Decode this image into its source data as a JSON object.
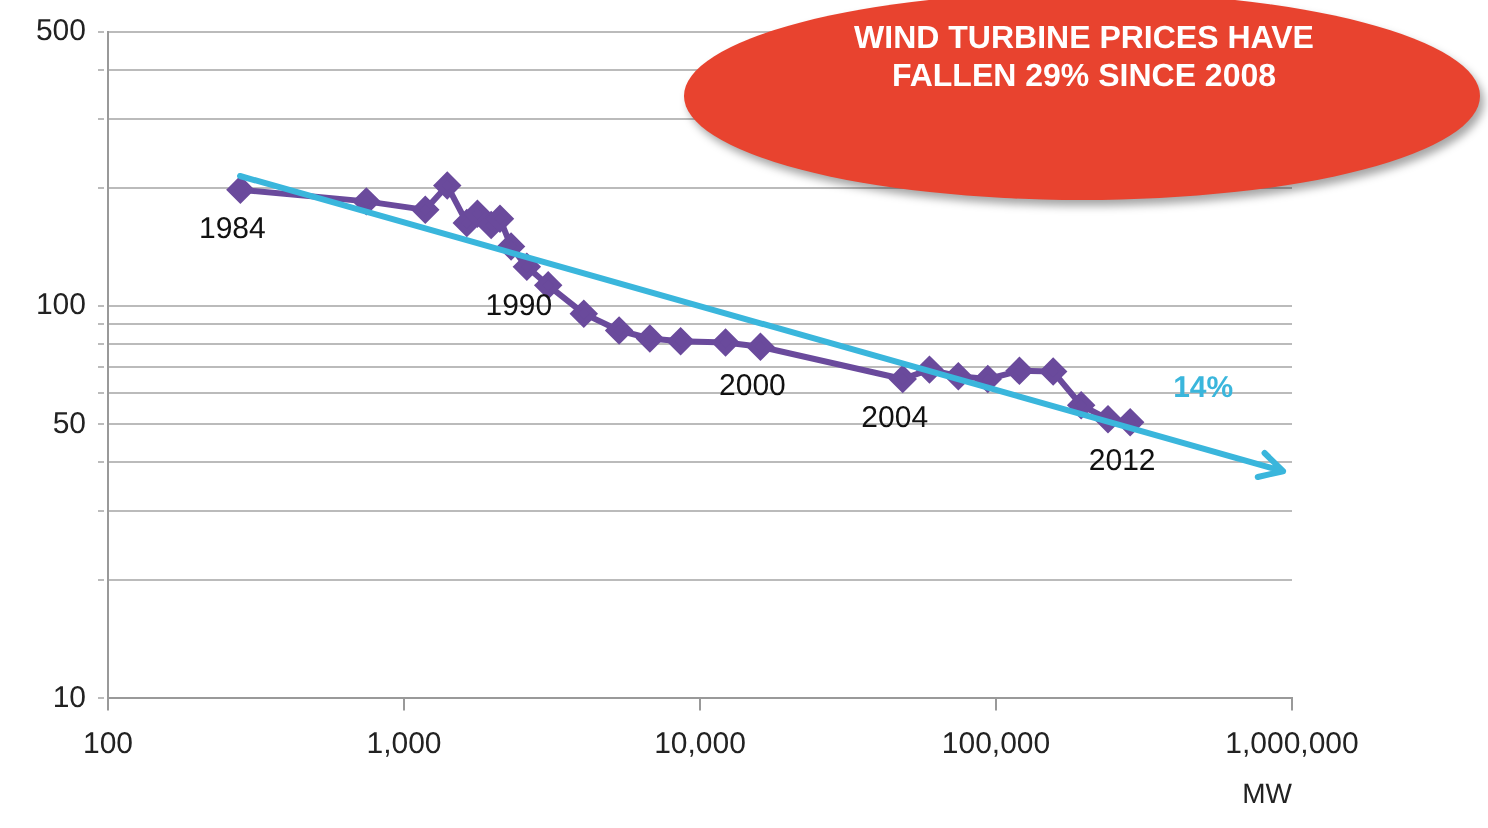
{
  "chart_data": {
    "type": "line",
    "title": "WIND TURBINE PRICES HAVE FALLEN 29% SINCE 2008",
    "xlabel": "MW",
    "log": "xy",
    "xlim": [
      100,
      1000000
    ],
    "xticks": [
      {
        "value": 100,
        "label": "100"
      },
      {
        "value": 1000,
        "label": "1,000"
      },
      {
        "value": 10000,
        "label": "10,000"
      },
      {
        "value": 100000,
        "label": "100,000"
      },
      {
        "value": 1000000,
        "label": "1,000,000"
      }
    ],
    "ylim": [
      10,
      500
    ],
    "yticks": [
      10,
      {
        "value": 20,
        "label": null
      },
      {
        "value": 30,
        "label": null
      },
      {
        "value": 40,
        "label": null
      },
      50,
      {
        "value": 60,
        "label": null
      },
      {
        "value": 70,
        "label": null
      },
      {
        "value": 80,
        "label": null
      },
      {
        "value": 90,
        "label": null
      },
      100,
      {
        "value": 200,
        "label": null
      },
      {
        "value": 300,
        "label": null
      },
      {
        "value": 400,
        "label": null
      },
      500
    ],
    "grid": "y",
    "legend": false,
    "series": [
      {
        "color": "#6a4a9c",
        "marker": "diamond",
        "x": [
          280,
          746,
          1180,
          1400,
          1630,
          1770,
          1970,
          2110,
          2300,
          2600,
          3070,
          4050,
          5330,
          6770,
          8600,
          12200,
          16000,
          48400,
          59600,
          74600,
          93800,
          120000,
          156000,
          194000,
          239000,
          284000
        ],
        "values": [
          198,
          185,
          176,
          203,
          163,
          172,
          161,
          167,
          142,
          126,
          113,
          95.7,
          86.7,
          82.7,
          81.4,
          80.8,
          78.8,
          65.2,
          68.9,
          66.3,
          65.2,
          68.4,
          68.1,
          55.9,
          51.5,
          50.6
        ]
      }
    ],
    "annotations": [
      {
        "text": "1984",
        "x": 280,
        "y": 198
      },
      {
        "text": "1990",
        "x": 2600,
        "y": 126
      },
      {
        "text": "2000",
        "x": 16000,
        "y": 78.8
      },
      {
        "text": "2004",
        "x": 48400,
        "y": 65.2
      },
      {
        "text": "2012",
        "x": 284000,
        "y": 50.6
      },
      "14%"
    ]
  }
}
